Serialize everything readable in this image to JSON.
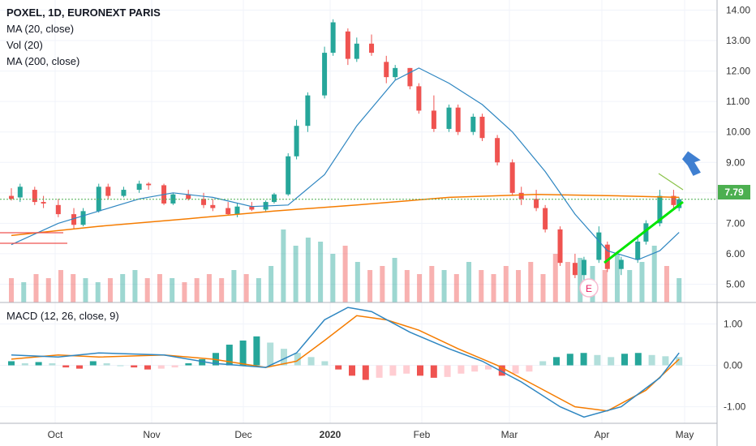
{
  "header": {
    "symbol_line": "POXEL, 1D, EURONEXT PARIS",
    "ma20_label": "MA (20, close)",
    "vol_label": "Vol (20)",
    "ma200_label": "MA (200, close)",
    "macd_label": "MACD (12, 26, close, 9)"
  },
  "current_price_label": "7.79",
  "earnings_marker": "E",
  "colors": {
    "up": "#26a69a",
    "down": "#ef5350",
    "ma20": "#2e86c1",
    "ma200": "#f57c00",
    "price_line": "#4caf50",
    "trend_line": "#00e600",
    "arrow": "#3f7fd1",
    "grid": "#f0f3fa",
    "axis_text": "#333333"
  },
  "chart_data": [
    {
      "type": "candlestick",
      "title": "POXEL, 1D, EURONEXT PARIS",
      "x_ticks": [
        "Oct",
        "Nov",
        "Dec",
        "2020",
        "Feb",
        "Mar",
        "Apr",
        "May"
      ],
      "y_ticks": [
        "14.00",
        "13.00",
        "12.00",
        "11.00",
        "10.00",
        "9.00",
        "8.00",
        "7.00",
        "6.00",
        "5.00"
      ],
      "ylim": [
        4.4,
        14.2
      ],
      "current_price": 7.79,
      "series": [
        {
          "name": "MA (20, close)",
          "values_key": "ma20"
        },
        {
          "name": "MA (200, close)",
          "values_key": "ma200"
        }
      ],
      "candles": [
        {
          "d": "Sep 16",
          "o": 7.9,
          "h": 8.15,
          "l": 7.75,
          "c": 7.8
        },
        {
          "d": "Sep 19",
          "o": 7.85,
          "h": 8.3,
          "l": 7.7,
          "c": 8.2
        },
        {
          "d": "Sep 24",
          "o": 8.1,
          "h": 8.2,
          "l": 7.6,
          "c": 7.7
        },
        {
          "d": "Sep 27",
          "o": 7.7,
          "h": 7.9,
          "l": 7.5,
          "c": 7.65
        },
        {
          "d": "Oct 2",
          "o": 7.6,
          "h": 7.8,
          "l": 7.2,
          "c": 7.3
        },
        {
          "d": "Oct 7",
          "o": 7.3,
          "h": 7.5,
          "l": 6.8,
          "c": 6.95
        },
        {
          "d": "Oct 10",
          "o": 6.95,
          "h": 7.5,
          "l": 6.9,
          "c": 7.4
        },
        {
          "d": "Oct 15",
          "o": 7.4,
          "h": 8.3,
          "l": 7.35,
          "c": 8.2
        },
        {
          "d": "Oct 18",
          "o": 8.2,
          "h": 8.3,
          "l": 7.8,
          "c": 7.9
        },
        {
          "d": "Oct 23",
          "o": 7.9,
          "h": 8.2,
          "l": 7.85,
          "c": 8.1
        },
        {
          "d": "Oct 28",
          "o": 8.1,
          "h": 8.4,
          "l": 8.0,
          "c": 8.3
        },
        {
          "d": "Oct 31",
          "o": 8.3,
          "h": 8.35,
          "l": 8.1,
          "c": 8.25
        },
        {
          "d": "Nov 5",
          "o": 8.25,
          "h": 8.3,
          "l": 7.6,
          "c": 7.65
        },
        {
          "d": "Nov 8",
          "o": 7.65,
          "h": 8.0,
          "l": 7.6,
          "c": 7.95
        },
        {
          "d": "Nov 13",
          "o": 7.95,
          "h": 8.1,
          "l": 7.75,
          "c": 7.8
        },
        {
          "d": "Nov 18",
          "o": 7.8,
          "h": 8.0,
          "l": 7.5,
          "c": 7.6
        },
        {
          "d": "Nov 21",
          "o": 7.6,
          "h": 7.8,
          "l": 7.4,
          "c": 7.5
        },
        {
          "d": "Nov 26",
          "o": 7.5,
          "h": 7.7,
          "l": 7.25,
          "c": 7.3
        },
        {
          "d": "Nov 29",
          "o": 7.3,
          "h": 7.65,
          "l": 7.2,
          "c": 7.55
        },
        {
          "d": "Dec 4",
          "o": 7.55,
          "h": 7.7,
          "l": 7.4,
          "c": 7.45
        },
        {
          "d": "Dec 9",
          "o": 7.45,
          "h": 7.75,
          "l": 7.4,
          "c": 7.7
        },
        {
          "d": "Dec 12",
          "o": 7.7,
          "h": 8.0,
          "l": 7.65,
          "c": 7.95
        },
        {
          "d": "Dec 17",
          "o": 7.95,
          "h": 9.3,
          "l": 7.9,
          "c": 9.2
        },
        {
          "d": "Dec 20",
          "o": 9.2,
          "h": 10.4,
          "l": 9.1,
          "c": 10.2
        },
        {
          "d": "Dec 24",
          "o": 10.2,
          "h": 11.3,
          "l": 10.0,
          "c": 11.2
        },
        {
          "d": "Dec 30",
          "o": 11.2,
          "h": 12.8,
          "l": 11.1,
          "c": 12.6
        },
        {
          "d": "Jan 2",
          "o": 12.6,
          "h": 13.7,
          "l": 12.5,
          "c": 13.6
        },
        {
          "d": "Jan 7",
          "o": 13.3,
          "h": 13.4,
          "l": 12.2,
          "c": 12.4
        },
        {
          "d": "Jan 10",
          "o": 12.4,
          "h": 13.1,
          "l": 12.3,
          "c": 12.9
        },
        {
          "d": "Jan 15",
          "o": 12.9,
          "h": 13.2,
          "l": 12.5,
          "c": 12.6
        },
        {
          "d": "Jan 20",
          "o": 12.3,
          "h": 12.5,
          "l": 11.6,
          "c": 11.8
        },
        {
          "d": "Jan 23",
          "o": 11.8,
          "h": 12.2,
          "l": 11.7,
          "c": 12.1
        },
        {
          "d": "Jan 28",
          "o": 12.1,
          "h": 12.1,
          "l": 11.4,
          "c": 11.5
        },
        {
          "d": "Jan 31",
          "o": 11.5,
          "h": 11.6,
          "l": 10.6,
          "c": 10.7
        },
        {
          "d": "Feb 5",
          "o": 10.7,
          "h": 11.2,
          "l": 10.0,
          "c": 10.1
        },
        {
          "d": "Feb 10",
          "o": 10.1,
          "h": 10.9,
          "l": 10.0,
          "c": 10.8
        },
        {
          "d": "Feb 13",
          "o": 10.8,
          "h": 10.9,
          "l": 9.9,
          "c": 10.0
        },
        {
          "d": "Feb 18",
          "o": 10.0,
          "h": 10.6,
          "l": 9.9,
          "c": 10.5
        },
        {
          "d": "Feb 21",
          "o": 10.5,
          "h": 10.6,
          "l": 9.7,
          "c": 9.8
        },
        {
          "d": "Feb 26",
          "o": 9.8,
          "h": 9.9,
          "l": 8.9,
          "c": 9.0
        },
        {
          "d": "Mar 2",
          "o": 9.0,
          "h": 9.1,
          "l": 7.9,
          "c": 8.0
        },
        {
          "d": "Mar 5",
          "o": 8.0,
          "h": 8.2,
          "l": 7.6,
          "c": 7.8
        },
        {
          "d": "Mar 10",
          "o": 7.8,
          "h": 8.1,
          "l": 7.4,
          "c": 7.5
        },
        {
          "d": "Mar 13",
          "o": 7.5,
          "h": 7.6,
          "l": 6.7,
          "c": 6.8
        },
        {
          "d": "Mar 18",
          "o": 6.8,
          "h": 6.9,
          "l": 5.6,
          "c": 5.7
        },
        {
          "d": "Mar 23",
          "o": 5.7,
          "h": 6.0,
          "l": 5.2,
          "c": 5.3
        },
        {
          "d": "Mar 26",
          "o": 5.3,
          "h": 5.9,
          "l": 5.1,
          "c": 5.8
        },
        {
          "d": "Mar 31",
          "o": 5.8,
          "h": 6.9,
          "l": 5.7,
          "c": 6.7
        },
        {
          "d": "Apr 3",
          "o": 6.3,
          "h": 6.4,
          "l": 5.4,
          "c": 5.5
        },
        {
          "d": "Apr 8",
          "o": 5.5,
          "h": 5.9,
          "l": 5.3,
          "c": 5.8
        },
        {
          "d": "Apr 14",
          "o": 5.8,
          "h": 6.6,
          "l": 5.7,
          "c": 6.4
        },
        {
          "d": "Apr 17",
          "o": 6.4,
          "h": 7.1,
          "l": 6.3,
          "c": 7.0
        },
        {
          "d": "Apr 22",
          "o": 7.0,
          "h": 8.1,
          "l": 6.9,
          "c": 7.9
        },
        {
          "d": "Apr 27",
          "o": 7.9,
          "h": 8.1,
          "l": 7.5,
          "c": 7.6
        },
        {
          "d": "Apr 29",
          "o": 7.5,
          "h": 7.85,
          "l": 7.4,
          "c": 7.79
        }
      ],
      "ma20": [
        {
          "d": "Sep 16",
          "v": 6.3
        },
        {
          "d": "Oct 2",
          "v": 7.0
        },
        {
          "d": "Oct 15",
          "v": 7.4
        },
        {
          "d": "Oct 28",
          "v": 7.8
        },
        {
          "d": "Nov 8",
          "v": 8.0
        },
        {
          "d": "Nov 21",
          "v": 7.85
        },
        {
          "d": "Dec 4",
          "v": 7.55
        },
        {
          "d": "Dec 17",
          "v": 7.6
        },
        {
          "d": "Dec 30",
          "v": 8.6
        },
        {
          "d": "Jan 10",
          "v": 10.2
        },
        {
          "d": "Jan 23",
          "v": 11.7
        },
        {
          "d": "Jan 31",
          "v": 12.1
        },
        {
          "d": "Feb 10",
          "v": 11.6
        },
        {
          "d": "Feb 21",
          "v": 10.9
        },
        {
          "d": "Mar 2",
          "v": 10.0
        },
        {
          "d": "Mar 13",
          "v": 8.7
        },
        {
          "d": "Mar 23",
          "v": 7.3
        },
        {
          "d": "Apr 3",
          "v": 6.1
        },
        {
          "d": "Apr 14",
          "v": 5.8
        },
        {
          "d": "Apr 22",
          "v": 6.1
        },
        {
          "d": "Apr 29",
          "v": 6.7
        }
      ],
      "ma200": [
        {
          "d": "Sep 16",
          "v": 6.6
        },
        {
          "d": "Oct 15",
          "v": 6.9
        },
        {
          "d": "Nov 13",
          "v": 7.15
        },
        {
          "d": "Dec 12",
          "v": 7.4
        },
        {
          "d": "Jan 10",
          "v": 7.6
        },
        {
          "d": "Feb 10",
          "v": 7.85
        },
        {
          "d": "Mar 10",
          "v": 7.95
        },
        {
          "d": "Apr 8",
          "v": 7.9
        },
        {
          "d": "Apr 29",
          "v": 7.85
        }
      ],
      "volume": [
        0.3,
        0.25,
        0.35,
        0.3,
        0.4,
        0.35,
        0.3,
        0.25,
        0.3,
        0.35,
        0.4,
        0.3,
        0.35,
        0.3,
        0.25,
        0.3,
        0.35,
        0.3,
        0.4,
        0.35,
        0.3,
        0.45,
        0.9,
        0.7,
        0.8,
        0.75,
        0.6,
        0.7,
        0.5,
        0.4,
        0.45,
        0.55,
        0.4,
        0.35,
        0.45,
        0.4,
        0.35,
        0.5,
        0.4,
        0.35,
        0.45,
        0.4,
        0.5,
        0.35,
        0.6,
        0.5,
        0.55,
        0.45,
        0.4,
        0.6,
        0.4,
        0.5,
        0.7,
        0.45,
        0.3
      ]
    },
    {
      "type": "macd",
      "title": "MACD (12, 26, close, 9)",
      "y_ticks": [
        "1.00",
        "0.00",
        "-1.00"
      ],
      "ylim": [
        -1.4,
        1.5
      ],
      "macd": [
        {
          "d": "Sep 16",
          "v": 0.25
        },
        {
          "d": "Oct 2",
          "v": 0.2
        },
        {
          "d": "Oct 15",
          "v": 0.3
        },
        {
          "d": "Nov 5",
          "v": 0.25
        },
        {
          "d": "Nov 21",
          "v": 0.05
        },
        {
          "d": "Dec 9",
          "v": -0.05
        },
        {
          "d": "Dec 20",
          "v": 0.3
        },
        {
          "d": "Dec 30",
          "v": 1.1
        },
        {
          "d": "Jan 7",
          "v": 1.4
        },
        {
          "d": "Jan 15",
          "v": 1.3
        },
        {
          "d": "Jan 28",
          "v": 0.8
        },
        {
          "d": "Feb 10",
          "v": 0.4
        },
        {
          "d": "Feb 21",
          "v": 0.1
        },
        {
          "d": "Mar 5",
          "v": -0.4
        },
        {
          "d": "Mar 18",
          "v": -1.0
        },
        {
          "d": "Mar 26",
          "v": -1.25
        },
        {
          "d": "Apr 8",
          "v": -1.0
        },
        {
          "d": "Apr 22",
          "v": -0.3
        },
        {
          "d": "Apr 29",
          "v": 0.3
        }
      ],
      "signal": [
        {
          "d": "Sep 16",
          "v": 0.15
        },
        {
          "d": "Oct 2",
          "v": 0.25
        },
        {
          "d": "Oct 15",
          "v": 0.2
        },
        {
          "d": "Nov 5",
          "v": 0.25
        },
        {
          "d": "Nov 21",
          "v": 0.15
        },
        {
          "d": "Dec 9",
          "v": -0.05
        },
        {
          "d": "Dec 20",
          "v": 0.1
        },
        {
          "d": "Dec 30",
          "v": 0.6
        },
        {
          "d": "Jan 10",
          "v": 1.2
        },
        {
          "d": "Jan 20",
          "v": 1.1
        },
        {
          "d": "Jan 31",
          "v": 0.85
        },
        {
          "d": "Feb 13",
          "v": 0.4
        },
        {
          "d": "Feb 26",
          "v": 0.0
        },
        {
          "d": "Mar 10",
          "v": -0.5
        },
        {
          "d": "Mar 23",
          "v": -1.0
        },
        {
          "d": "Apr 3",
          "v": -1.1
        },
        {
          "d": "Apr 17",
          "v": -0.6
        },
        {
          "d": "Apr 29",
          "v": 0.15
        }
      ],
      "histogram": [
        0.1,
        0.05,
        0.08,
        0.05,
        -0.05,
        -0.08,
        0.1,
        0.05,
        0.0,
        -0.05,
        -0.1,
        -0.08,
        -0.05,
        0.05,
        0.15,
        0.3,
        0.5,
        0.6,
        0.7,
        0.55,
        0.4,
        0.3,
        0.2,
        0.1,
        -0.1,
        -0.25,
        -0.35,
        -0.3,
        -0.25,
        -0.2,
        -0.25,
        -0.3,
        -0.28,
        -0.2,
        -0.15,
        -0.1,
        -0.25,
        -0.2,
        -0.15,
        0.1,
        0.2,
        0.28,
        0.3,
        0.25,
        0.2,
        0.28,
        0.3,
        0.25,
        0.22,
        0.2
      ]
    }
  ]
}
